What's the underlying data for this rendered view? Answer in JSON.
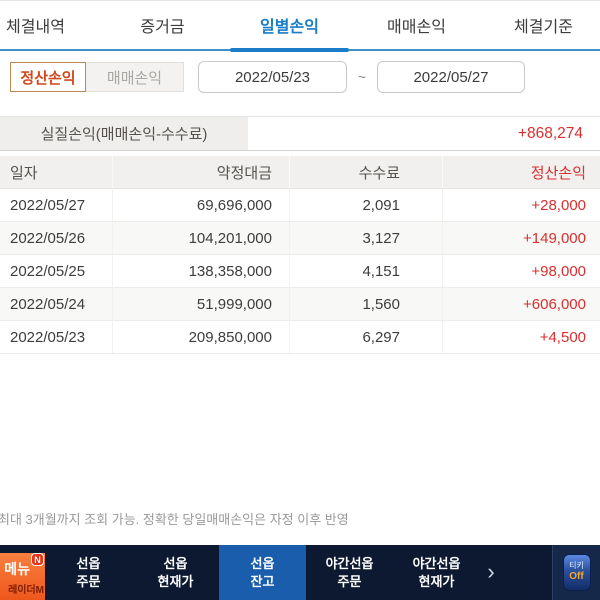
{
  "tabs": {
    "active_index": 2,
    "items": [
      {
        "label": "체결내역"
      },
      {
        "label": "증거금"
      },
      {
        "label": "일별손익"
      },
      {
        "label": "매매손익"
      },
      {
        "label": "체결기준"
      }
    ]
  },
  "filters": {
    "profit_type_selected": "정산손익",
    "profit_type_alt": "매매손익",
    "date_from": "2022/05/23",
    "date_separator": "~",
    "date_to": "2022/05/27"
  },
  "net_profit": {
    "label": "실질손익(매매손익-수수료)",
    "value": "+868,274"
  },
  "table": {
    "headers": {
      "date": "일자",
      "amount": "약정대금",
      "fee": "수수료",
      "profit": "정산손익"
    },
    "rows": [
      {
        "date": "2022/05/27",
        "amount": "69,696,000",
        "fee": "2,091",
        "profit": "+28,000"
      },
      {
        "date": "2022/05/26",
        "amount": "104,201,000",
        "fee": "3,127",
        "profit": "+149,000"
      },
      {
        "date": "2022/05/25",
        "amount": "138,358,000",
        "fee": "4,151",
        "profit": "+98,000"
      },
      {
        "date": "2022/05/24",
        "amount": "51,999,000",
        "fee": "1,560",
        "profit": "+606,000"
      },
      {
        "date": "2022/05/23",
        "amount": "209,850,000",
        "fee": "6,297",
        "profit": "+4,500"
      }
    ]
  },
  "notice": "최대 3개월까지 조회 가능. 정확한 당일매매손익은 자정 이후 반영",
  "navbar": {
    "menu": {
      "label": "메뉴",
      "badge": "N",
      "sub_label": "레이더M"
    },
    "items": [
      {
        "line1": "선옵",
        "line2": "주문",
        "active": false
      },
      {
        "line1": "선옵",
        "line2": "현재가",
        "active": false
      },
      {
        "line1": "선옵",
        "line2": "잔고",
        "active": true
      },
      {
        "line1": "야간선옵",
        "line2": "주문",
        "active": false
      },
      {
        "line1": "야간선옵",
        "line2": "현재가",
        "active": false
      }
    ],
    "more": "›",
    "tikey": {
      "top": "티키",
      "bottom": "Off"
    }
  },
  "colors": {
    "accent_blue": "#1b7dc9",
    "profit_red": "#d92f2f",
    "selected_orange": "#d0491c",
    "nav_bg": "#0c1930",
    "nav_active_blue": "#1a5dad",
    "menu_orange": "#ee571b"
  }
}
